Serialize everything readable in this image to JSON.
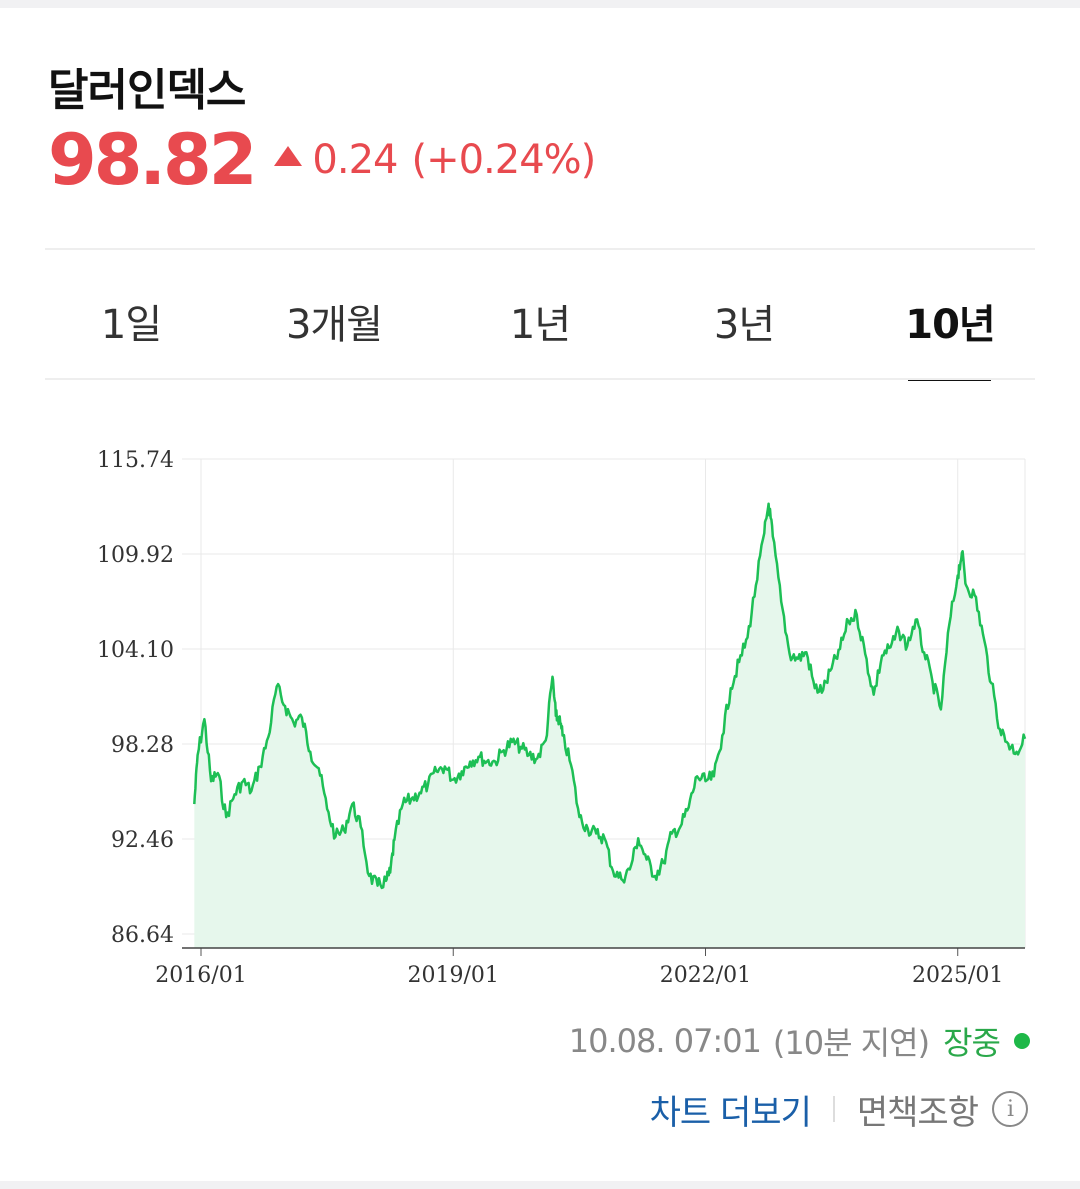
{
  "header": {
    "title": "달러인덱스",
    "price": "98.82",
    "change": "0.24",
    "change_pct": "(+0.24%)",
    "direction_icon": "triangle-up-icon",
    "up_color": "#e84a4f"
  },
  "tabs": [
    {
      "label": "1일",
      "active": false
    },
    {
      "label": "3개월",
      "active": false
    },
    {
      "label": "1년",
      "active": false
    },
    {
      "label": "3년",
      "active": false
    },
    {
      "label": "10년",
      "active": true
    }
  ],
  "chart_data": {
    "type": "area",
    "line_color": "#1dbf55",
    "fill_color": "#e6f7ec",
    "grid": true,
    "y_ticks": [
      "115.74",
      "109.92",
      "104.10",
      "98.28",
      "92.46",
      "86.64"
    ],
    "x_ticks": [
      "2016/01",
      "2019/01",
      "2022/01",
      "2025/01"
    ],
    "ylim": [
      86.64,
      115.74
    ],
    "xlim": [
      2016.0,
      2025.8
    ],
    "series": [
      {
        "x": [
          2015.92,
          2015.96,
          2016.04,
          2016.12,
          2016.2,
          2016.3,
          2016.4,
          2016.5,
          2016.6,
          2016.7,
          2016.8,
          2016.9,
          2017.0,
          2017.1,
          2017.2,
          2017.3,
          2017.4,
          2017.5,
          2017.6,
          2017.7,
          2017.8,
          2017.9,
          2018.0,
          2018.1,
          2018.2,
          2018.25,
          2018.3,
          2018.4,
          2018.5,
          2018.6,
          2018.7,
          2018.8,
          2018.9,
          2019.0,
          2019.1,
          2019.2,
          2019.3,
          2019.4,
          2019.5,
          2019.6,
          2019.7,
          2019.8,
          2019.9,
          2020.0,
          2020.1,
          2020.18,
          2020.22,
          2020.26,
          2020.3,
          2020.4,
          2020.5,
          2020.6,
          2020.7,
          2020.8,
          2020.9,
          2021.0,
          2021.1,
          2021.2,
          2021.3,
          2021.4,
          2021.5,
          2021.6,
          2021.7,
          2021.8,
          2021.9,
          2022.0,
          2022.1,
          2022.2,
          2022.3,
          2022.4,
          2022.5,
          2022.6,
          2022.7,
          2022.75,
          2022.8,
          2022.9,
          2023.0,
          2023.1,
          2023.2,
          2023.3,
          2023.4,
          2023.5,
          2023.6,
          2023.7,
          2023.8,
          2023.9,
          2024.0,
          2024.1,
          2024.2,
          2024.3,
          2024.4,
          2024.5,
          2024.6,
          2024.7,
          2024.8,
          2024.9,
          2025.0,
          2025.05,
          2025.1,
          2025.2,
          2025.3,
          2025.4,
          2025.5,
          2025.6,
          2025.7,
          2025.8
        ],
        "values": [
          94.6,
          97.6,
          99.8,
          96.0,
          96.5,
          93.8,
          95.2,
          96.0,
          95.4,
          96.9,
          98.7,
          101.8,
          100.6,
          99.6,
          99.9,
          97.8,
          96.8,
          94.3,
          92.6,
          93.0,
          94.6,
          93.2,
          90.2,
          89.6,
          89.9,
          90.4,
          92.4,
          94.6,
          94.9,
          95.3,
          95.8,
          96.6,
          96.9,
          96.1,
          96.6,
          97.2,
          97.5,
          97.2,
          97.2,
          97.9,
          98.4,
          98.1,
          97.6,
          97.4,
          98.5,
          102.4,
          100.0,
          99.8,
          98.8,
          97.0,
          93.8,
          93.1,
          92.8,
          92.5,
          90.5,
          90.0,
          90.6,
          92.5,
          91.2,
          90.2,
          91.0,
          92.8,
          93.2,
          94.4,
          96.3,
          96.0,
          96.3,
          98.8,
          101.7,
          103.3,
          104.8,
          108.0,
          111.2,
          113.0,
          111.0,
          107.0,
          103.8,
          103.5,
          103.9,
          101.7,
          101.6,
          102.9,
          104.1,
          105.8,
          106.2,
          103.8,
          101.3,
          103.7,
          104.2,
          105.2,
          104.3,
          105.9,
          103.9,
          102.1,
          100.4,
          105.6,
          108.6,
          110.0,
          108.0,
          107.4,
          105.0,
          102.0,
          99.2,
          98.3,
          97.8,
          98.6
        ]
      }
    ]
  },
  "status": {
    "timestamp": "10.08. 07:01",
    "delay": "(10분 지연)",
    "market_status": "장중",
    "live_color": "#1eb848"
  },
  "footer": {
    "more_chart": "차트 더보기",
    "disclaimer": "면책조항",
    "info_icon": "info-icon"
  }
}
